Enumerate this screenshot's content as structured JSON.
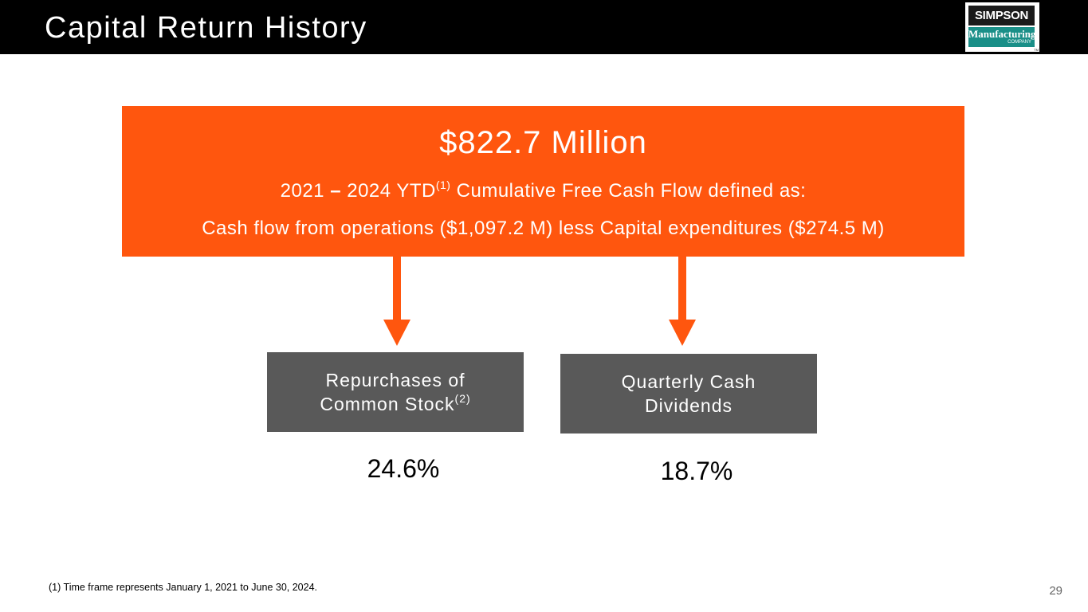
{
  "slide": {
    "title": "Capital Return History",
    "page_number": "29"
  },
  "logo": {
    "top_text": "SIMPSON",
    "middle_text": "Manufacturing",
    "bottom_text": "COMPANY",
    "tm": "TM",
    "colors": {
      "dark": "#1a1a1a",
      "teal": "#1a8f88"
    }
  },
  "free_cash_flow": {
    "amount": "$822.7 Million",
    "line1_prefix": "2021 ",
    "line1_dash": "–",
    "line1_period": " 2024 YTD",
    "line1_footnote_ref": "(1)",
    "line1_suffix": " Cumulative Free Cash Flow defined as:",
    "line2": "Cash flow from operations ($1,097.2 M) less Capital expenditures ($274.5 M)",
    "color": "#ff560e"
  },
  "uses": [
    {
      "label_line1": "Repurchases of",
      "label_line2": "Common Stock",
      "footnote_ref": "(2)",
      "percent": "24.6%"
    },
    {
      "label_line1": "Quarterly Cash",
      "label_line2": "Dividends",
      "footnote_ref": "",
      "percent": "18.7%"
    }
  ],
  "arrow_color": "#ff560e",
  "box_color": "#595959",
  "footnotes": [
    "(1)  Time frame represents January 1, 2021 to June 30, 2024."
  ]
}
